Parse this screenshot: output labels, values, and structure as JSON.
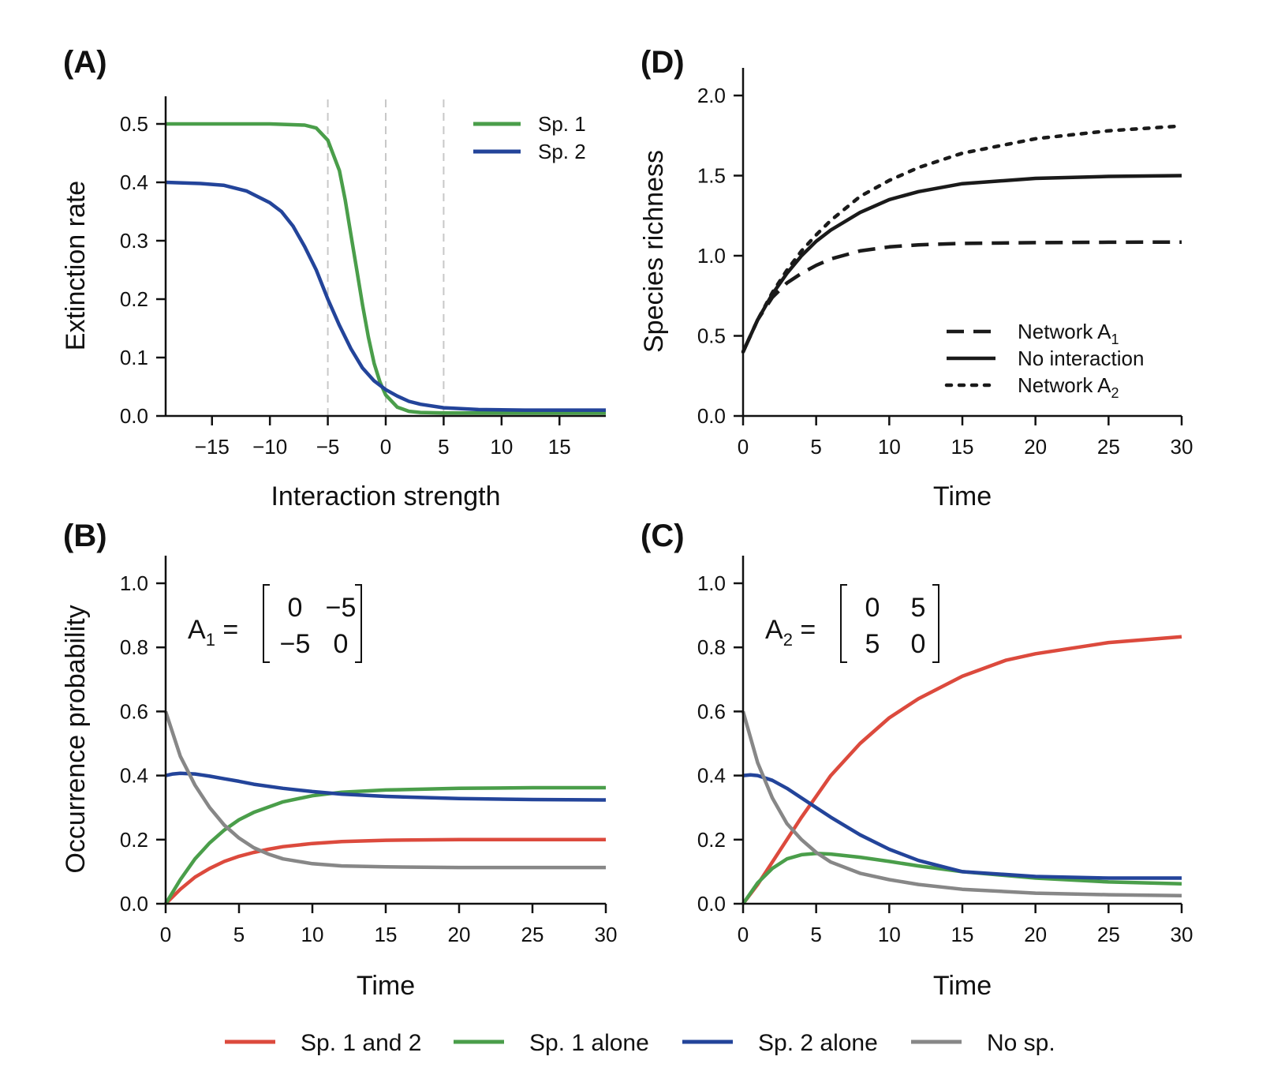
{
  "colors": {
    "green": "#4a9e4a",
    "blue": "#23449a",
    "red": "#dc4a3d",
    "gray": "#878787",
    "black": "#1a1a1a",
    "guide": "#c8c8c8"
  },
  "chart_data": [
    {
      "id": "A",
      "panel_label": "(A)",
      "type": "line",
      "xlabel": "Interaction strength",
      "ylabel": "Extinction rate",
      "xlim": [
        -19,
        19
      ],
      "ylim": [
        0,
        0.5
      ],
      "xticks": [
        -15,
        -10,
        -5,
        0,
        5,
        10,
        15
      ],
      "xtick_labels": [
        "−15",
        "−10",
        "−5",
        "0",
        "5",
        "10",
        "15"
      ],
      "yticks": [
        0,
        0.1,
        0.2,
        0.3,
        0.4,
        0.5
      ],
      "ytick_labels": [
        "0.0",
        "0.1",
        "0.2",
        "0.3",
        "0.4",
        "0.5"
      ],
      "vlines": [
        -5,
        0,
        5
      ],
      "legend_position": "top-right",
      "series": [
        {
          "name": "Sp. 1",
          "color_key": "green",
          "style": "solid",
          "x": [
            -19,
            -15,
            -10,
            -7,
            -6,
            -5,
            -4,
            -3.5,
            -3,
            -2.5,
            -2,
            -1.5,
            -1,
            -0.5,
            0,
            1,
            2,
            3,
            5,
            10,
            19
          ],
          "y": [
            0.5,
            0.5,
            0.5,
            0.498,
            0.493,
            0.472,
            0.42,
            0.37,
            0.31,
            0.25,
            0.19,
            0.135,
            0.09,
            0.058,
            0.036,
            0.015,
            0.008,
            0.006,
            0.005,
            0.005,
            0.005
          ]
        },
        {
          "name": "Sp. 2",
          "color_key": "blue",
          "style": "solid",
          "x": [
            -19,
            -16,
            -14,
            -12,
            -10,
            -9,
            -8,
            -7,
            -6,
            -5,
            -4,
            -3,
            -2,
            -1,
            0,
            1,
            2,
            3,
            5,
            8,
            12,
            19
          ],
          "y": [
            0.4,
            0.398,
            0.395,
            0.385,
            0.365,
            0.35,
            0.325,
            0.29,
            0.25,
            0.2,
            0.155,
            0.115,
            0.082,
            0.06,
            0.045,
            0.034,
            0.025,
            0.02,
            0.014,
            0.011,
            0.01,
            0.01
          ]
        }
      ]
    },
    {
      "id": "D",
      "panel_label": "(D)",
      "type": "line",
      "xlabel": "Time",
      "ylabel": "Species richness",
      "xlim": [
        0,
        30
      ],
      "ylim": [
        0,
        2
      ],
      "xticks": [
        0,
        5,
        10,
        15,
        20,
        25,
        30
      ],
      "xtick_labels": [
        "0",
        "5",
        "10",
        "15",
        "20",
        "25",
        "30"
      ],
      "yticks": [
        0,
        0.5,
        1,
        1.5,
        2
      ],
      "ytick_labels": [
        "0.0",
        "0.5",
        "1.0",
        "1.5",
        "2.0"
      ],
      "legend_position": "bottom-right",
      "series": [
        {
          "name": "Network A",
          "name_sub": "1",
          "color_key": "black",
          "style": "dashed",
          "x": [
            0,
            1,
            2,
            3,
            4,
            5,
            6,
            8,
            10,
            12,
            15,
            20,
            25,
            30
          ],
          "y": [
            0.4,
            0.6,
            0.74,
            0.83,
            0.89,
            0.94,
            0.98,
            1.03,
            1.055,
            1.068,
            1.077,
            1.082,
            1.084,
            1.085
          ]
        },
        {
          "name": "No interaction",
          "color_key": "black",
          "style": "solid",
          "x": [
            0,
            1,
            2,
            3,
            4,
            5,
            6,
            8,
            10,
            12,
            15,
            20,
            25,
            30
          ],
          "y": [
            0.4,
            0.6,
            0.76,
            0.89,
            1.0,
            1.09,
            1.16,
            1.27,
            1.35,
            1.4,
            1.45,
            1.483,
            1.495,
            1.5
          ]
        },
        {
          "name": "Network A",
          "name_sub": "2",
          "color_key": "black",
          "style": "dotted",
          "x": [
            0,
            1,
            2,
            3,
            4,
            5,
            6,
            8,
            10,
            12,
            15,
            20,
            25,
            30
          ],
          "y": [
            0.4,
            0.6,
            0.77,
            0.91,
            1.03,
            1.13,
            1.22,
            1.37,
            1.47,
            1.55,
            1.64,
            1.73,
            1.78,
            1.81
          ]
        }
      ]
    },
    {
      "id": "B",
      "panel_label": "(B)",
      "type": "line",
      "xlabel": "Time",
      "ylabel": "Occurrence probability",
      "xlim": [
        0,
        30
      ],
      "ylim": [
        0,
        1
      ],
      "xticks": [
        0,
        5,
        10,
        15,
        20,
        25,
        30
      ],
      "xtick_labels": [
        "0",
        "5",
        "10",
        "15",
        "20",
        "25",
        "30"
      ],
      "yticks": [
        0,
        0.2,
        0.4,
        0.6,
        0.8,
        1.0
      ],
      "ytick_labels": [
        "0.0",
        "0.2",
        "0.4",
        "0.6",
        "0.8",
        "1.0"
      ],
      "matrix": {
        "name": "A",
        "sub": "1",
        "rows": [
          [
            "0",
            "−5"
          ],
          [
            "−5",
            "0"
          ]
        ]
      },
      "series": [
        {
          "name": "Sp. 1 and 2",
          "color_key": "red",
          "style": "solid",
          "x": [
            0,
            1,
            2,
            3,
            4,
            5,
            6,
            7,
            8,
            10,
            12,
            15,
            20,
            25,
            30
          ],
          "y": [
            0,
            0.045,
            0.083,
            0.11,
            0.132,
            0.148,
            0.16,
            0.17,
            0.178,
            0.188,
            0.194,
            0.198,
            0.2,
            0.2,
            0.2
          ]
        },
        {
          "name": "Sp. 1 alone",
          "color_key": "green",
          "style": "solid",
          "x": [
            0,
            1,
            2,
            3,
            4,
            5,
            6,
            8,
            10,
            12,
            15,
            20,
            25,
            30
          ],
          "y": [
            0,
            0.075,
            0.14,
            0.19,
            0.23,
            0.262,
            0.285,
            0.318,
            0.337,
            0.348,
            0.355,
            0.36,
            0.362,
            0.362
          ]
        },
        {
          "name": "Sp. 2 alone",
          "color_key": "blue",
          "style": "solid",
          "x": [
            0,
            0.5,
            1,
            2,
            3,
            4,
            5,
            6,
            8,
            10,
            12,
            15,
            20,
            25,
            30
          ],
          "y": [
            0.4,
            0.405,
            0.407,
            0.405,
            0.398,
            0.39,
            0.382,
            0.373,
            0.36,
            0.35,
            0.342,
            0.335,
            0.328,
            0.325,
            0.324
          ]
        },
        {
          "name": "No sp.",
          "color_key": "gray",
          "style": "solid",
          "x": [
            0,
            1,
            2,
            3,
            4,
            5,
            6,
            7,
            8,
            10,
            12,
            15,
            20,
            25,
            30
          ],
          "y": [
            0.6,
            0.46,
            0.37,
            0.3,
            0.245,
            0.205,
            0.175,
            0.155,
            0.14,
            0.125,
            0.118,
            0.115,
            0.113,
            0.113,
            0.113
          ]
        }
      ]
    },
    {
      "id": "C",
      "panel_label": "(C)",
      "type": "line",
      "xlabel": "Time",
      "ylabel": "",
      "xlim": [
        0,
        30
      ],
      "ylim": [
        0,
        1
      ],
      "xticks": [
        0,
        5,
        10,
        15,
        20,
        25,
        30
      ],
      "xtick_labels": [
        "0",
        "5",
        "10",
        "15",
        "20",
        "25",
        "30"
      ],
      "yticks": [
        0,
        0.2,
        0.4,
        0.6,
        0.8,
        1.0
      ],
      "ytick_labels": [
        "0.0",
        "0.2",
        "0.4",
        "0.6",
        "0.8",
        "1.0"
      ],
      "matrix": {
        "name": "A",
        "sub": "2",
        "rows": [
          [
            "0",
            "5"
          ],
          [
            "5",
            "0"
          ]
        ]
      },
      "series": [
        {
          "name": "Sp. 1 and 2",
          "color_key": "red",
          "style": "solid",
          "x": [
            0,
            1,
            2,
            3,
            4,
            5,
            6,
            8,
            10,
            12,
            15,
            18,
            20,
            25,
            30
          ],
          "y": [
            0,
            0.06,
            0.13,
            0.2,
            0.27,
            0.335,
            0.4,
            0.5,
            0.58,
            0.64,
            0.71,
            0.76,
            0.78,
            0.815,
            0.833
          ]
        },
        {
          "name": "Sp. 1 alone",
          "color_key": "green",
          "style": "solid",
          "x": [
            0,
            1,
            2,
            3,
            4,
            5,
            6,
            8,
            10,
            12,
            15,
            20,
            25,
            30
          ],
          "y": [
            0,
            0.065,
            0.11,
            0.14,
            0.153,
            0.157,
            0.155,
            0.145,
            0.132,
            0.118,
            0.1,
            0.08,
            0.068,
            0.062
          ]
        },
        {
          "name": "Sp. 2 alone",
          "color_key": "blue",
          "style": "solid",
          "x": [
            0,
            0.5,
            1,
            2,
            3,
            4,
            5,
            6,
            8,
            10,
            12,
            15,
            20,
            25,
            30
          ],
          "y": [
            0.4,
            0.402,
            0.4,
            0.385,
            0.36,
            0.33,
            0.3,
            0.27,
            0.215,
            0.17,
            0.135,
            0.1,
            0.085,
            0.08,
            0.08
          ]
        },
        {
          "name": "No sp.",
          "color_key": "gray",
          "style": "solid",
          "x": [
            0,
            1,
            2,
            3,
            4,
            5,
            6,
            8,
            10,
            12,
            15,
            20,
            25,
            30
          ],
          "y": [
            0.6,
            0.44,
            0.33,
            0.25,
            0.2,
            0.16,
            0.13,
            0.095,
            0.075,
            0.06,
            0.045,
            0.033,
            0.028,
            0.025
          ]
        }
      ]
    }
  ],
  "bottom_legend": [
    {
      "name": "Sp. 1 and 2",
      "color_key": "red"
    },
    {
      "name": "Sp. 1 alone",
      "color_key": "green"
    },
    {
      "name": "Sp. 2 alone",
      "color_key": "blue"
    },
    {
      "name": "No sp.",
      "color_key": "gray"
    }
  ]
}
